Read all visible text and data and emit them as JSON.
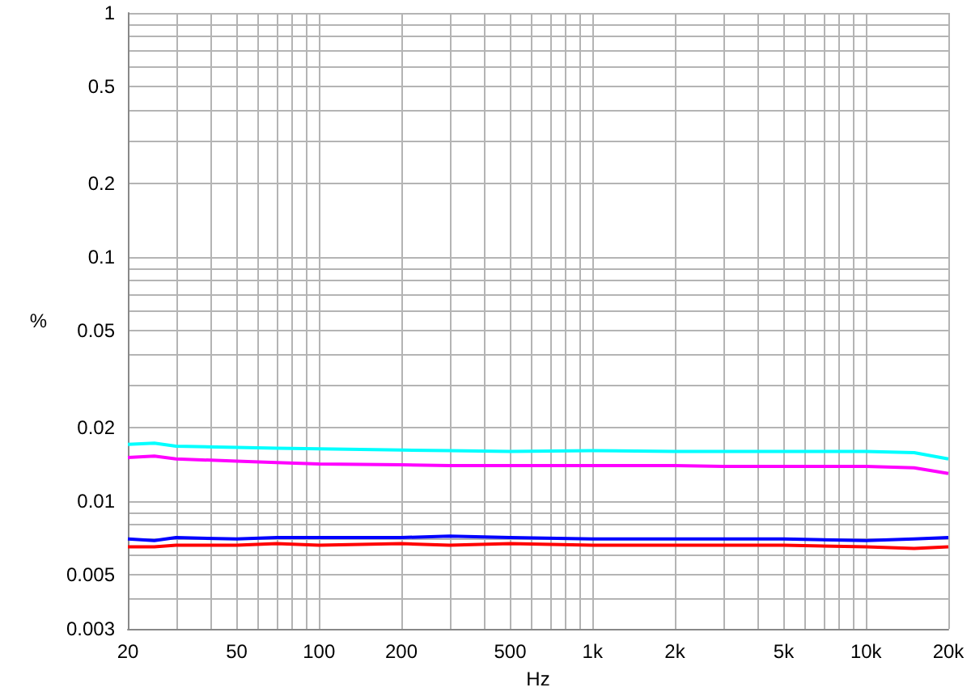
{
  "chart_data": {
    "type": "line",
    "xlabel": "Hz",
    "ylabel": "%",
    "log": "xy",
    "grid": true,
    "marker": "none",
    "line_style": "solid",
    "xlim": [
      20,
      20000
    ],
    "ylim": [
      0.003,
      1
    ],
    "xticks": [
      20,
      {
        "value": 30,
        "label": null
      },
      {
        "value": 40,
        "label": null
      },
      50,
      {
        "value": 60,
        "label": null
      },
      {
        "value": 70,
        "label": null
      },
      {
        "value": 80,
        "label": null
      },
      {
        "value": 90,
        "label": null
      },
      100,
      200,
      {
        "value": 300,
        "label": null
      },
      {
        "value": 400,
        "label": null
      },
      500,
      {
        "value": 600,
        "label": null
      },
      {
        "value": 700,
        "label": null
      },
      {
        "value": 800,
        "label": null
      },
      {
        "value": 900,
        "label": null
      },
      {
        "value": 1000,
        "label": "1k"
      },
      {
        "value": 2000,
        "label": "2k"
      },
      {
        "value": 3000,
        "label": null
      },
      {
        "value": 4000,
        "label": null
      },
      {
        "value": 5000,
        "label": "5k"
      },
      {
        "value": 6000,
        "label": null
      },
      {
        "value": 7000,
        "label": null
      },
      {
        "value": 8000,
        "label": null
      },
      {
        "value": 9000,
        "label": null
      },
      {
        "value": 10000,
        "label": "10k"
      },
      {
        "value": 20000,
        "label": "20k"
      }
    ],
    "yticks": [
      0.003,
      {
        "value": 0.004,
        "label": null
      },
      0.005,
      {
        "value": 0.006,
        "label": null
      },
      {
        "value": 0.007,
        "label": null
      },
      {
        "value": 0.008,
        "label": null
      },
      {
        "value": 0.009,
        "label": null
      },
      0.01,
      0.02,
      {
        "value": 0.03,
        "label": null
      },
      {
        "value": 0.04,
        "label": null
      },
      0.05,
      {
        "value": 0.06,
        "label": null
      },
      {
        "value": 0.07,
        "label": null
      },
      {
        "value": 0.08,
        "label": null
      },
      {
        "value": 0.09,
        "label": null
      },
      0.1,
      0.2,
      {
        "value": 0.3,
        "label": null
      },
      {
        "value": 0.4,
        "label": null
      },
      0.5,
      {
        "value": 0.6,
        "label": null
      },
      {
        "value": 0.7,
        "label": null
      },
      {
        "value": 0.8,
        "label": null
      },
      {
        "value": 0.9,
        "label": null
      },
      1
    ],
    "x": [
      20,
      25,
      30,
      50,
      70,
      100,
      200,
      300,
      500,
      1000,
      2000,
      3000,
      5000,
      10000,
      15000,
      20000
    ],
    "series": [
      {
        "color": "#00ffff",
        "values": [
          0.0171,
          0.0173,
          0.0168,
          0.0166,
          0.0165,
          0.0164,
          0.0162,
          0.0161,
          0.016,
          0.0161,
          0.016,
          0.016,
          0.016,
          0.016,
          0.0158,
          0.0149
        ]
      },
      {
        "color": "#ff00ff",
        "values": [
          0.0151,
          0.0153,
          0.0149,
          0.0146,
          0.0144,
          0.0142,
          0.0141,
          0.014,
          0.014,
          0.014,
          0.014,
          0.0139,
          0.0139,
          0.0139,
          0.0137,
          0.013
        ]
      },
      {
        "color": "#0000ff",
        "values": [
          0.007,
          0.0069,
          0.0071,
          0.007,
          0.0071,
          0.0071,
          0.0071,
          0.0072,
          0.0071,
          0.007,
          0.007,
          0.007,
          0.007,
          0.0069,
          0.007,
          0.0071
        ]
      },
      {
        "color": "#ff0000",
        "values": [
          0.0065,
          0.0065,
          0.0066,
          0.0066,
          0.0067,
          0.0066,
          0.0067,
          0.0066,
          0.0067,
          0.0066,
          0.0066,
          0.0066,
          0.0066,
          0.0065,
          0.0064,
          0.0065
        ]
      }
    ]
  }
}
